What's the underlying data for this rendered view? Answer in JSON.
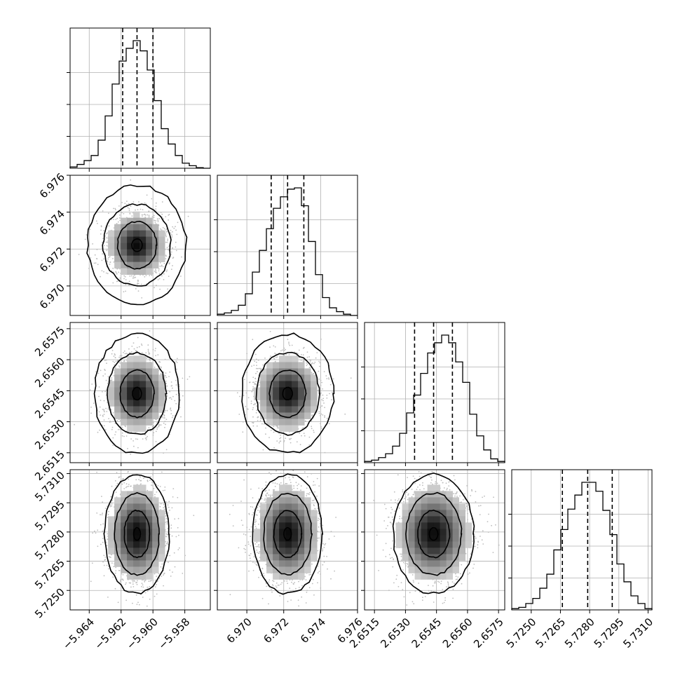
{
  "chart_data": {
    "type": "corner",
    "grid": true,
    "n_params": 4,
    "histogram_bins": 20,
    "quantile_lines": "dashed",
    "contour_levels": 4,
    "params": [
      {
        "range": [
          -5.9652,
          -5.9564
        ],
        "ticks": [
          -5.964,
          -5.962,
          -5.96,
          -5.958
        ],
        "tick_labels": [
          "−5.964",
          "−5.962",
          "−5.960",
          "−5.958"
        ],
        "quantiles": [
          -5.9619,
          -5.961,
          -5.96
        ],
        "hist_peak": 1.0
      },
      {
        "range": [
          6.9684,
          6.976
        ],
        "ticks": [
          6.97,
          6.972,
          6.974,
          6.976
        ],
        "tick_labels": [
          "6.970",
          "6.972",
          "6.974",
          "6.976"
        ],
        "quantiles": [
          6.97132,
          6.97221,
          6.97309
        ],
        "hist_peak": 1.0
      },
      {
        "range": [
          2.65102,
          2.6578
        ],
        "ticks": [
          2.6515,
          2.653,
          2.6545,
          2.656,
          2.6575
        ],
        "tick_labels": [
          "2.6515",
          "2.6530",
          "2.6545",
          "2.6560",
          "2.6575"
        ],
        "quantiles": [
          2.65344,
          2.65436,
          2.65527
        ],
        "hist_peak": 1.0
      },
      {
        "range": [
          5.724,
          5.7312
        ],
        "ticks": [
          5.725,
          5.7265,
          5.728,
          5.7295,
          5.731
        ],
        "tick_labels": [
          "5.7250",
          "5.7265",
          "5.7280",
          "5.7295",
          "5.7310"
        ],
        "quantiles": [
          5.7266,
          5.7279,
          5.72916
        ],
        "hist_peak": 1.0
      }
    ],
    "histograms": [
      [
        0.01,
        0.03,
        0.06,
        0.1,
        0.22,
        0.41,
        0.66,
        0.84,
        0.94,
        1.0,
        0.92,
        0.77,
        0.53,
        0.31,
        0.19,
        0.1,
        0.04,
        0.02,
        0.005,
        0.0
      ],
      [
        0.01,
        0.02,
        0.04,
        0.08,
        0.17,
        0.34,
        0.51,
        0.68,
        0.84,
        0.93,
        0.99,
        1.0,
        0.86,
        0.58,
        0.32,
        0.14,
        0.06,
        0.03,
        0.01,
        0.0
      ],
      [
        0.01,
        0.02,
        0.04,
        0.07,
        0.13,
        0.23,
        0.39,
        0.53,
        0.7,
        0.86,
        0.94,
        1.0,
        0.94,
        0.79,
        0.63,
        0.38,
        0.21,
        0.1,
        0.03,
        0.01
      ],
      [
        0.01,
        0.02,
        0.05,
        0.09,
        0.17,
        0.28,
        0.47,
        0.63,
        0.79,
        0.9,
        1.0,
        1.0,
        0.93,
        0.78,
        0.59,
        0.36,
        0.22,
        0.11,
        0.05,
        0.01
      ]
    ],
    "contour_semi_axes_fraction": [
      0.38,
      0.26,
      0.15,
      0.04
    ]
  }
}
